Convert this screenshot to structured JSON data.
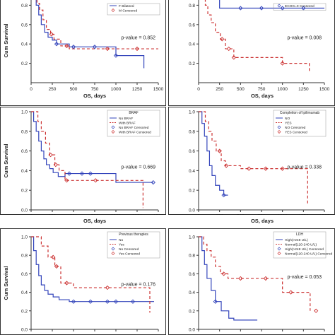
{
  "chart_data": [
    {
      "type": "line",
      "panel": "top-left",
      "xlabel": "OS, days",
      "ylabel": "Cum Survival",
      "xlim": [
        0,
        1500
      ],
      "ylim": [
        0,
        1.0
      ],
      "xticks": [
        "0",
        "250",
        "500",
        "750",
        "1000",
        "1250",
        "1500"
      ],
      "yticks": [
        "0.2",
        "0.4",
        "0.6",
        "0.8"
      ],
      "legend_title": "",
      "legend_position": "top-right",
      "legend": [
        "F Bilateral",
        "M Censored"
      ],
      "annotation": "p-value = 0.852",
      "series": [
        {
          "color": "#3344bb",
          "dash": "",
          "x": [
            0,
            40,
            60,
            90,
            120,
            160,
            200,
            250,
            300,
            450,
            1000,
            1330,
            1330
          ],
          "y": [
            1.0,
            0.9,
            0.8,
            0.7,
            0.6,
            0.52,
            0.47,
            0.44,
            0.4,
            0.37,
            0.28,
            0.28,
            0.15
          ]
        },
        {
          "color": "#cc3333",
          "dash": "4,3",
          "x": [
            0,
            50,
            70,
            100,
            140,
            180,
            230,
            270,
            350,
            450,
            1500
          ],
          "y": [
            1.0,
            0.9,
            0.82,
            0.75,
            0.65,
            0.55,
            0.5,
            0.45,
            0.38,
            0.35,
            0.35
          ]
        }
      ],
      "censor_marks": [
        {
          "color": "#3344bb",
          "x": [
            300,
            500,
            750,
            1000
          ]
        },
        {
          "color": "#cc3333",
          "x": [
            240,
            420,
            900,
            1250
          ]
        }
      ]
    },
    {
      "type": "line",
      "panel": "top-right",
      "xlabel": "OS, days",
      "ylabel": "",
      "xlim": [
        0,
        1500
      ],
      "ylim": [
        0,
        1.0
      ],
      "xticks": [
        "0",
        "250",
        "500",
        "750",
        "1000",
        "1250",
        "1500"
      ],
      "yticks": [
        "0.2",
        "0.4",
        "0.6",
        "0.8"
      ],
      "legend_title": "",
      "legend_position": "top-right",
      "legend": [
        "ECOG=0 Censored"
      ],
      "annotation": "p-value = 0.008",
      "series": [
        {
          "color": "#3344bb",
          "dash": "",
          "x": [
            0,
            250,
            250,
            1500
          ],
          "y": [
            1.0,
            1.0,
            0.77,
            0.77
          ]
        },
        {
          "color": "#cc3333",
          "dash": "4,3",
          "x": [
            0,
            50,
            80,
            110,
            150,
            200,
            260,
            320,
            420,
            1000,
            1320,
            1320
          ],
          "y": [
            1.0,
            0.9,
            0.8,
            0.7,
            0.62,
            0.52,
            0.45,
            0.35,
            0.26,
            0.2,
            0.18,
            0.1
          ]
        }
      ],
      "censor_marks": [
        {
          "color": "#3344bb",
          "x": [
            500,
            750,
            1000,
            1250
          ]
        },
        {
          "color": "#cc3333",
          "x": [
            280,
            360,
            420,
            1000
          ]
        }
      ]
    },
    {
      "type": "line",
      "panel": "middle-left",
      "xlabel": "OS, days",
      "ylabel": "Cum Survival",
      "xlim": [
        0,
        1500
      ],
      "ylim": [
        0,
        1.0
      ],
      "xticks": [
        "0",
        "250",
        "500",
        "750",
        "1000",
        "1250",
        "1500"
      ],
      "yticks": [
        "0.0",
        "0.2",
        "0.4",
        "0.6",
        "0.8",
        "1.0"
      ],
      "legend_title": "BRAF",
      "legend_position": "top-right",
      "legend": [
        "No BRAF",
        "With BRAF",
        "No BRAF Censored",
        "With BRAF Censored"
      ],
      "annotation": "p-value = 0.669",
      "series": [
        {
          "color": "#3344bb",
          "dash": "",
          "x": [
            0,
            30,
            60,
            90,
            120,
            150,
            180,
            220,
            260,
            320,
            400,
            1000,
            1440
          ],
          "y": [
            1.0,
            0.9,
            0.8,
            0.7,
            0.6,
            0.52,
            0.46,
            0.42,
            0.38,
            0.34,
            0.37,
            0.28,
            0.28
          ]
        },
        {
          "color": "#cc3333",
          "dash": "4,3",
          "x": [
            0,
            80,
            120,
            170,
            220,
            280,
            330,
            400,
            1320,
            1320
          ],
          "y": [
            1.0,
            0.9,
            0.8,
            0.68,
            0.56,
            0.46,
            0.4,
            0.3,
            0.3,
            0.02
          ]
        }
      ],
      "censor_marks": [
        {
          "color": "#3344bb",
          "x": [
            450,
            600,
            700,
            1440
          ]
        },
        {
          "color": "#cc3333",
          "x": [
            230,
            290,
            420,
            760
          ]
        }
      ]
    },
    {
      "type": "line",
      "panel": "middle-right",
      "xlabel": "OS, days",
      "ylabel": "",
      "xlim": [
        0,
        1500
      ],
      "ylim": [
        0,
        1.0
      ],
      "xticks": [
        "0",
        "250",
        "500",
        "750",
        "1000",
        "1250",
        "1500"
      ],
      "yticks": [
        "0.0",
        "0.2",
        "0.4",
        "0.6",
        "0.8",
        "1.0"
      ],
      "legend_title": "Completion of Ipilimumab",
      "legend_position": "top-right",
      "legend": [
        "NO",
        "YES",
        "NO Censored",
        "YES Censored"
      ],
      "annotation": "p-value = 0.338",
      "series": [
        {
          "color": "#3344bb",
          "dash": "",
          "x": [
            0,
            40,
            70,
            100,
            130,
            160,
            200,
            250,
            300,
            350
          ],
          "y": [
            1.0,
            0.88,
            0.75,
            0.6,
            0.45,
            0.35,
            0.25,
            0.2,
            0.15,
            0.15
          ]
        },
        {
          "color": "#cc3333",
          "dash": "4,3",
          "x": [
            0,
            80,
            120,
            160,
            210,
            270,
            320,
            500,
            1300,
            1300
          ],
          "y": [
            1.0,
            0.9,
            0.8,
            0.7,
            0.6,
            0.5,
            0.45,
            0.42,
            0.38,
            0.05
          ]
        }
      ],
      "censor_marks": [
        {
          "color": "#3344bb",
          "x": [
            300
          ]
        },
        {
          "color": "#cc3333",
          "x": [
            250,
            330,
            600,
            800,
            1000
          ]
        }
      ]
    },
    {
      "type": "line",
      "panel": "bottom-left",
      "xlabel": "",
      "ylabel": "Cum Survival",
      "xlim": [
        0,
        1500
      ],
      "ylim": [
        0,
        1.0
      ],
      "xticks": [],
      "yticks": [
        "0.0",
        "0.2",
        "0.4",
        "0.6",
        "0.8",
        "1.0"
      ],
      "legend_title": "Previous therapies",
      "legend_position": "top-right",
      "legend": [
        "No",
        "Yes",
        "No Censored",
        "Yes Censored"
      ],
      "annotation": "p-value = 0.176",
      "series": [
        {
          "color": "#3344bb",
          "dash": "",
          "x": [
            0,
            30,
            60,
            90,
            120,
            160,
            200,
            260,
            330,
            450,
            1450
          ],
          "y": [
            1.0,
            0.85,
            0.7,
            0.58,
            0.48,
            0.42,
            0.38,
            0.35,
            0.32,
            0.3,
            0.3
          ]
        },
        {
          "color": "#cc3333",
          "dash": "4,3",
          "x": [
            0,
            120,
            200,
            280,
            350,
            500,
            1400,
            1400
          ],
          "y": [
            1.0,
            0.9,
            0.78,
            0.68,
            0.5,
            0.45,
            0.45,
            0.18
          ]
        }
      ],
      "censor_marks": [
        {
          "color": "#3344bb",
          "x": [
            500,
            700,
            900,
            1000,
            1200
          ]
        },
        {
          "color": "#cc3333",
          "x": [
            260,
            300,
            420,
            900
          ]
        }
      ]
    },
    {
      "type": "line",
      "panel": "bottom-right",
      "xlabel": "",
      "ylabel": "",
      "xlim": [
        0,
        1500
      ],
      "ylim": [
        0,
        1.0
      ],
      "xticks": [],
      "yticks": [
        "0.0",
        "0.2",
        "0.4",
        "0.6",
        "0.8",
        "1.0"
      ],
      "legend_title": "LDH",
      "legend_position": "top-right",
      "legend": [
        "High(>248 U/L)",
        "Normal(120-240 U/L)",
        "High(>248 U/L) Censored",
        "Normal(120-240 U/L) Censored"
      ],
      "annotation": "p-value = 0.053",
      "series": [
        {
          "color": "#3344bb",
          "dash": "",
          "x": [
            0,
            40,
            70,
            100,
            150,
            200,
            270,
            360,
            420,
            700
          ],
          "y": [
            1.0,
            0.85,
            0.7,
            0.55,
            0.42,
            0.3,
            0.2,
            0.12,
            0.1,
            0.1
          ]
        },
        {
          "color": "#cc3333",
          "dash": "4,3",
          "x": [
            0,
            60,
            100,
            150,
            200,
            260,
            350,
            1000,
            1330,
            1330
          ],
          "y": [
            1.0,
            0.92,
            0.85,
            0.78,
            0.68,
            0.6,
            0.55,
            0.4,
            0.3,
            0.2
          ]
        }
      ],
      "censor_marks": [
        {
          "color": "#3344bb",
          "x": [
            200
          ]
        },
        {
          "color": "#cc3333",
          "x": [
            300,
            500,
            800,
            1100,
            1400
          ]
        }
      ]
    }
  ]
}
